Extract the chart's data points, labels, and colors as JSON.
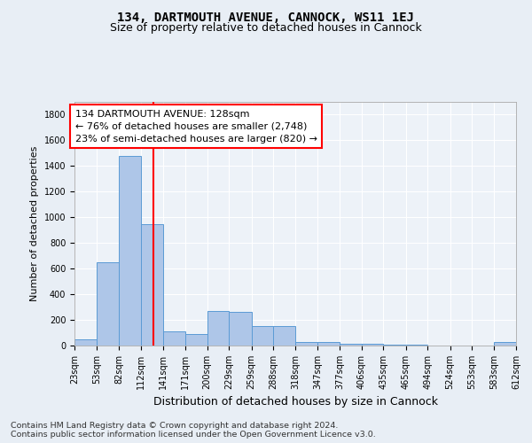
{
  "title1": "134, DARTMOUTH AVENUE, CANNOCK, WS11 1EJ",
  "title2": "Size of property relative to detached houses in Cannock",
  "xlabel": "Distribution of detached houses by size in Cannock",
  "ylabel": "Number of detached properties",
  "footnote": "Contains HM Land Registry data © Crown copyright and database right 2024.\nContains public sector information licensed under the Open Government Licence v3.0.",
  "bin_edges": [
    23,
    53,
    82,
    112,
    141,
    171,
    200,
    229,
    259,
    288,
    318,
    347,
    377,
    406,
    435,
    465,
    494,
    524,
    553,
    583,
    612
  ],
  "bar_heights": [
    50,
    650,
    1480,
    950,
    110,
    90,
    270,
    265,
    155,
    150,
    30,
    30,
    15,
    15,
    5,
    5,
    3,
    3,
    3,
    25
  ],
  "bar_color": "#aec6e8",
  "bar_edge_color": "#5b9bd5",
  "vline_x": 128,
  "vline_color": "red",
  "annotation_text": "134 DARTMOUTH AVENUE: 128sqm\n← 76% of detached houses are smaller (2,748)\n23% of semi-detached houses are larger (820) →",
  "annotation_box_color": "white",
  "annotation_box_edge_color": "red",
  "ylim": [
    0,
    1900
  ],
  "yticks": [
    0,
    200,
    400,
    600,
    800,
    1000,
    1200,
    1400,
    1600,
    1800
  ],
  "bg_color": "#e8eef5",
  "plot_bg_color": "#edf2f8",
  "grid_color": "white",
  "title1_fontsize": 10,
  "title2_fontsize": 9,
  "annotation_fontsize": 8,
  "tick_fontsize": 7,
  "ylabel_fontsize": 8,
  "xlabel_fontsize": 9,
  "footnote_fontsize": 6.8
}
